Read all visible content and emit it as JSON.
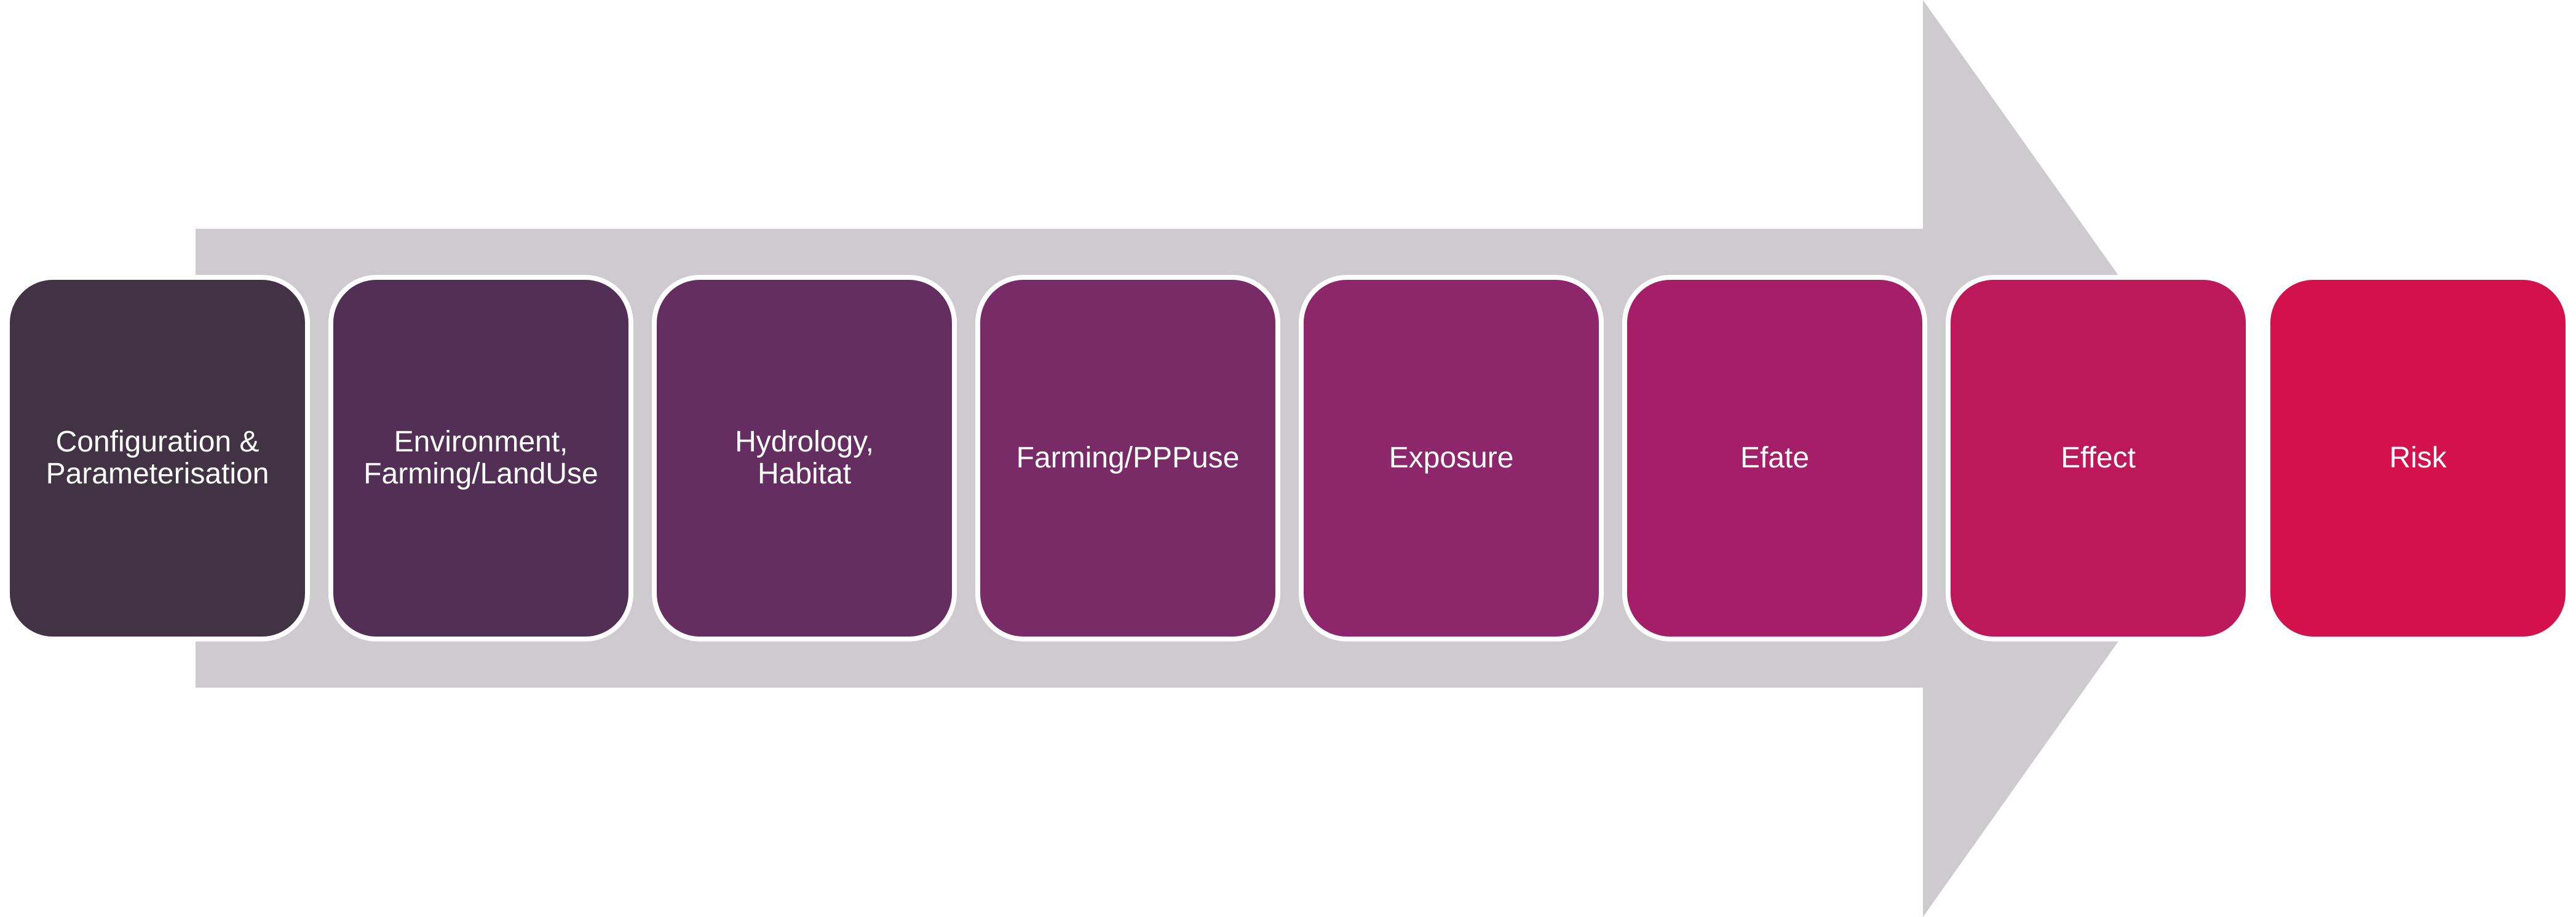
{
  "diagram": {
    "arrow_color": "#cdcbce",
    "steps": [
      {
        "label": "Configuration &\nParameterisation",
        "color": "#423344"
      },
      {
        "label": "Environment,\nFarming/LandUse",
        "color": "#522f55"
      },
      {
        "label": "Hydrology,\nHabitat",
        "color": "#652e61"
      },
      {
        "label": "Farming/PPPuse",
        "color": "#792b68"
      },
      {
        "label": "Exposure",
        "color": "#8d266a"
      },
      {
        "label": "Efate",
        "color": "#a41f67"
      },
      {
        "label": "Effect",
        "color": "#bd195a"
      },
      {
        "label": "Risk",
        "color": "#d2114d"
      }
    ]
  }
}
